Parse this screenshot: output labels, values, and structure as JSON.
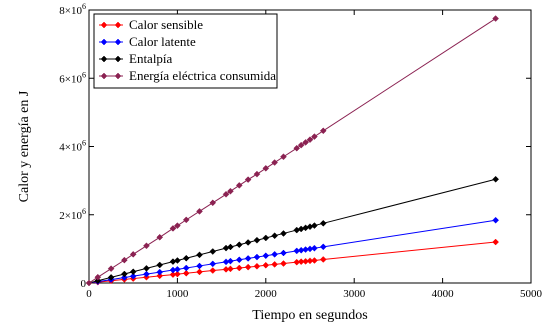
{
  "chart_data": {
    "type": "line",
    "title": "",
    "xlabel": "Tiempo en segundos",
    "ylabel": "Calor y energía en J",
    "xlim": [
      0,
      5000
    ],
    "ylim": [
      0,
      8000000
    ],
    "x_ticks": [
      "0",
      "1000",
      "2000",
      "3000",
      "4000",
      "5000"
    ],
    "y_ticks": [
      {
        "mantissa": "0",
        "exp": ""
      },
      {
        "mantissa": "2×10",
        "exp": "6"
      },
      {
        "mantissa": "4×10",
        "exp": "6"
      },
      {
        "mantissa": "6×10",
        "exp": "6"
      },
      {
        "mantissa": "8×10",
        "exp": "6"
      }
    ],
    "grid": false,
    "legend_position": "top-left",
    "series": [
      {
        "name": "Calor sensible",
        "color": "#ff0000",
        "marker": "diamond",
        "x": [
          0,
          100,
          250,
          400,
          500,
          650,
          800,
          950,
          1000,
          1100,
          1250,
          1400,
          1550,
          1600,
          1700,
          1800,
          1900,
          2000,
          2100,
          2200,
          2350,
          2400,
          2450,
          2500,
          2550,
          2650,
          4600
        ],
        "y": [
          0,
          25000,
          65000,
          105000,
          130000,
          170000,
          210000,
          245000,
          260000,
          285000,
          325000,
          365000,
          400000,
          415000,
          440000,
          465000,
          490000,
          520000,
          545000,
          570000,
          610000,
          625000,
          635000,
          650000,
          660000,
          690000,
          1200000
        ]
      },
      {
        "name": "Calor latente",
        "color": "#0000ff",
        "marker": "diamond",
        "x": [
          0,
          100,
          250,
          400,
          500,
          650,
          800,
          950,
          1000,
          1100,
          1250,
          1400,
          1550,
          1600,
          1700,
          1800,
          1900,
          2000,
          2100,
          2200,
          2350,
          2400,
          2450,
          2500,
          2550,
          2650,
          4600
        ],
        "y": [
          0,
          40000,
          100000,
          160000,
          200000,
          260000,
          320000,
          380000,
          400000,
          440000,
          500000,
          560000,
          620000,
          640000,
          680000,
          720000,
          760000,
          800000,
          840000,
          880000,
          940000,
          960000,
          980000,
          1000000,
          1020000,
          1060000,
          1840000
        ]
      },
      {
        "name": "Entalpía",
        "color": "#000000",
        "marker": "diamond",
        "x": [
          0,
          100,
          250,
          400,
          500,
          650,
          800,
          950,
          1000,
          1100,
          1250,
          1400,
          1550,
          1600,
          1700,
          1800,
          1900,
          2000,
          2100,
          2200,
          2350,
          2400,
          2450,
          2500,
          2550,
          2650,
          4600
        ],
        "y": [
          0,
          66000,
          165000,
          264000,
          330000,
          429000,
          528000,
          627000,
          660000,
          726000,
          825000,
          924000,
          1023000,
          1056000,
          1122000,
          1188000,
          1254000,
          1320000,
          1386000,
          1452000,
          1551000,
          1584000,
          1617000,
          1650000,
          1683000,
          1749000,
          3040000
        ]
      },
      {
        "name": "Energía eléctrica consumida",
        "color": "#8b2252",
        "marker": "diamond",
        "x": [
          0,
          100,
          250,
          400,
          500,
          650,
          800,
          950,
          1000,
          1100,
          1250,
          1400,
          1550,
          1600,
          1700,
          1800,
          1900,
          2000,
          2100,
          2200,
          2350,
          2400,
          2450,
          2500,
          2550,
          2650,
          4600
        ],
        "y": [
          0,
          170000,
          420000,
          670000,
          840000,
          1090000,
          1340000,
          1600000,
          1680000,
          1850000,
          2100000,
          2350000,
          2600000,
          2690000,
          2860000,
          3030000,
          3190000,
          3360000,
          3530000,
          3700000,
          3950000,
          4040000,
          4120000,
          4200000,
          4290000,
          4460000,
          7750000
        ]
      }
    ]
  }
}
